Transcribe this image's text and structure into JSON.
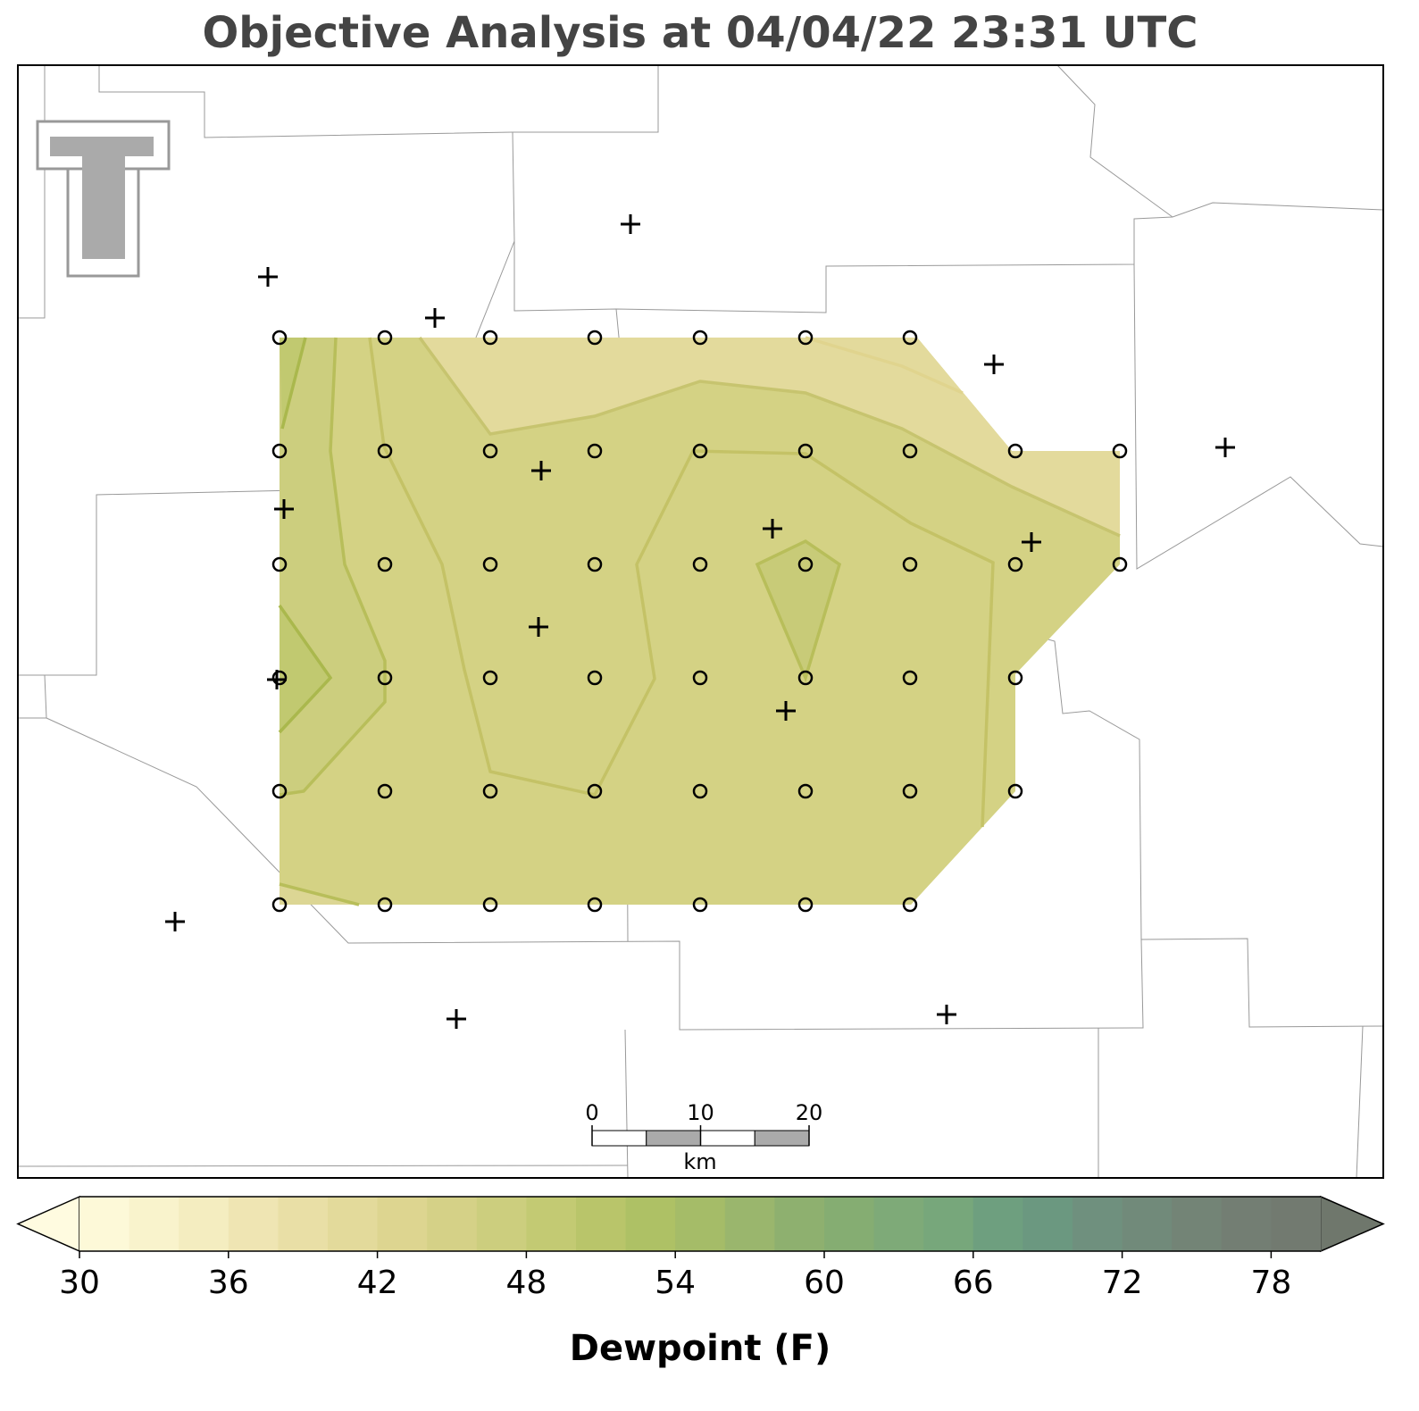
{
  "title": "Objective Analysis at 04/04/22 23:31 UTC",
  "colorbar": {
    "label": "Dewpoint (F)",
    "levels": [
      30,
      32,
      34,
      36,
      38,
      40,
      42,
      44,
      46,
      48,
      50,
      52,
      54,
      56,
      58,
      60,
      62,
      64,
      66,
      68,
      70,
      72,
      74,
      76,
      78,
      80
    ],
    "colors": [
      "#fdf9d8",
      "#f9f3cc",
      "#f4edc0",
      "#efe5b3",
      "#e9dfa6",
      "#e3da9b",
      "#ddd590",
      "#d5d187",
      "#ccce7e",
      "#c3ca73",
      "#b9c56a",
      "#aec165",
      "#a5bc68",
      "#9ab66d",
      "#8eb06f",
      "#85ad72",
      "#7eaa78",
      "#77a77b",
      "#6e9f7f",
      "#6b9880",
      "#6f907e",
      "#718a7a",
      "#738476",
      "#737e73",
      "#727a70"
    ],
    "under_color": "#fffbe0",
    "over_color": "#6f776c",
    "ticks": [
      30,
      36,
      42,
      48,
      54,
      60,
      66,
      72,
      78
    ]
  },
  "scale_bar": {
    "ticks": [
      0,
      10,
      20
    ],
    "unit": "km"
  }
}
